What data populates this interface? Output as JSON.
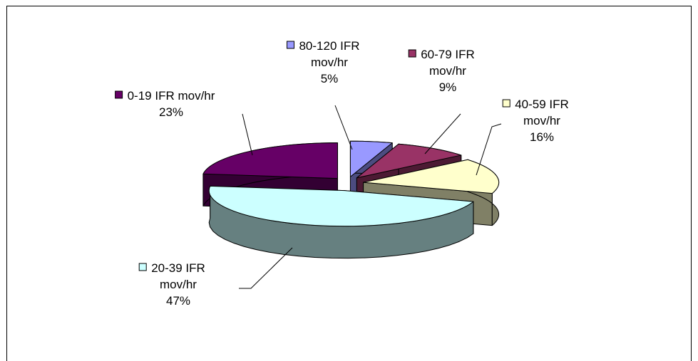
{
  "chart_data": {
    "type": "pie",
    "title": "",
    "slices": [
      {
        "label_lines": [
          "80-120 IFR",
          "mov/hr"
        ],
        "percent_label": "5%",
        "value": 5,
        "color": "#9999ff",
        "side": "#4c4c80"
      },
      {
        "label_lines": [
          "60-79 IFR",
          "mov/hr"
        ],
        "percent_label": "9%",
        "value": 9,
        "color": "#993366",
        "side": "#4c1a33"
      },
      {
        "label_lines": [
          "40-59 IFR",
          "mov/hr"
        ],
        "percent_label": "16%",
        "value": 16,
        "color": "#ffffcc",
        "side": "#808066"
      },
      {
        "label_lines": [
          "20-39 IFR",
          "mov/hr"
        ],
        "percent_label": "47%",
        "value": 47,
        "color": "#ccffff",
        "side": "#668080"
      },
      {
        "label_lines": [
          "0-19 IFR mov/hr"
        ],
        "percent_label": "23%",
        "value": 23,
        "color": "#660066",
        "side": "#330033"
      }
    ],
    "exploded": true,
    "three_d": true,
    "legend": "none (labels with leader lines)"
  }
}
